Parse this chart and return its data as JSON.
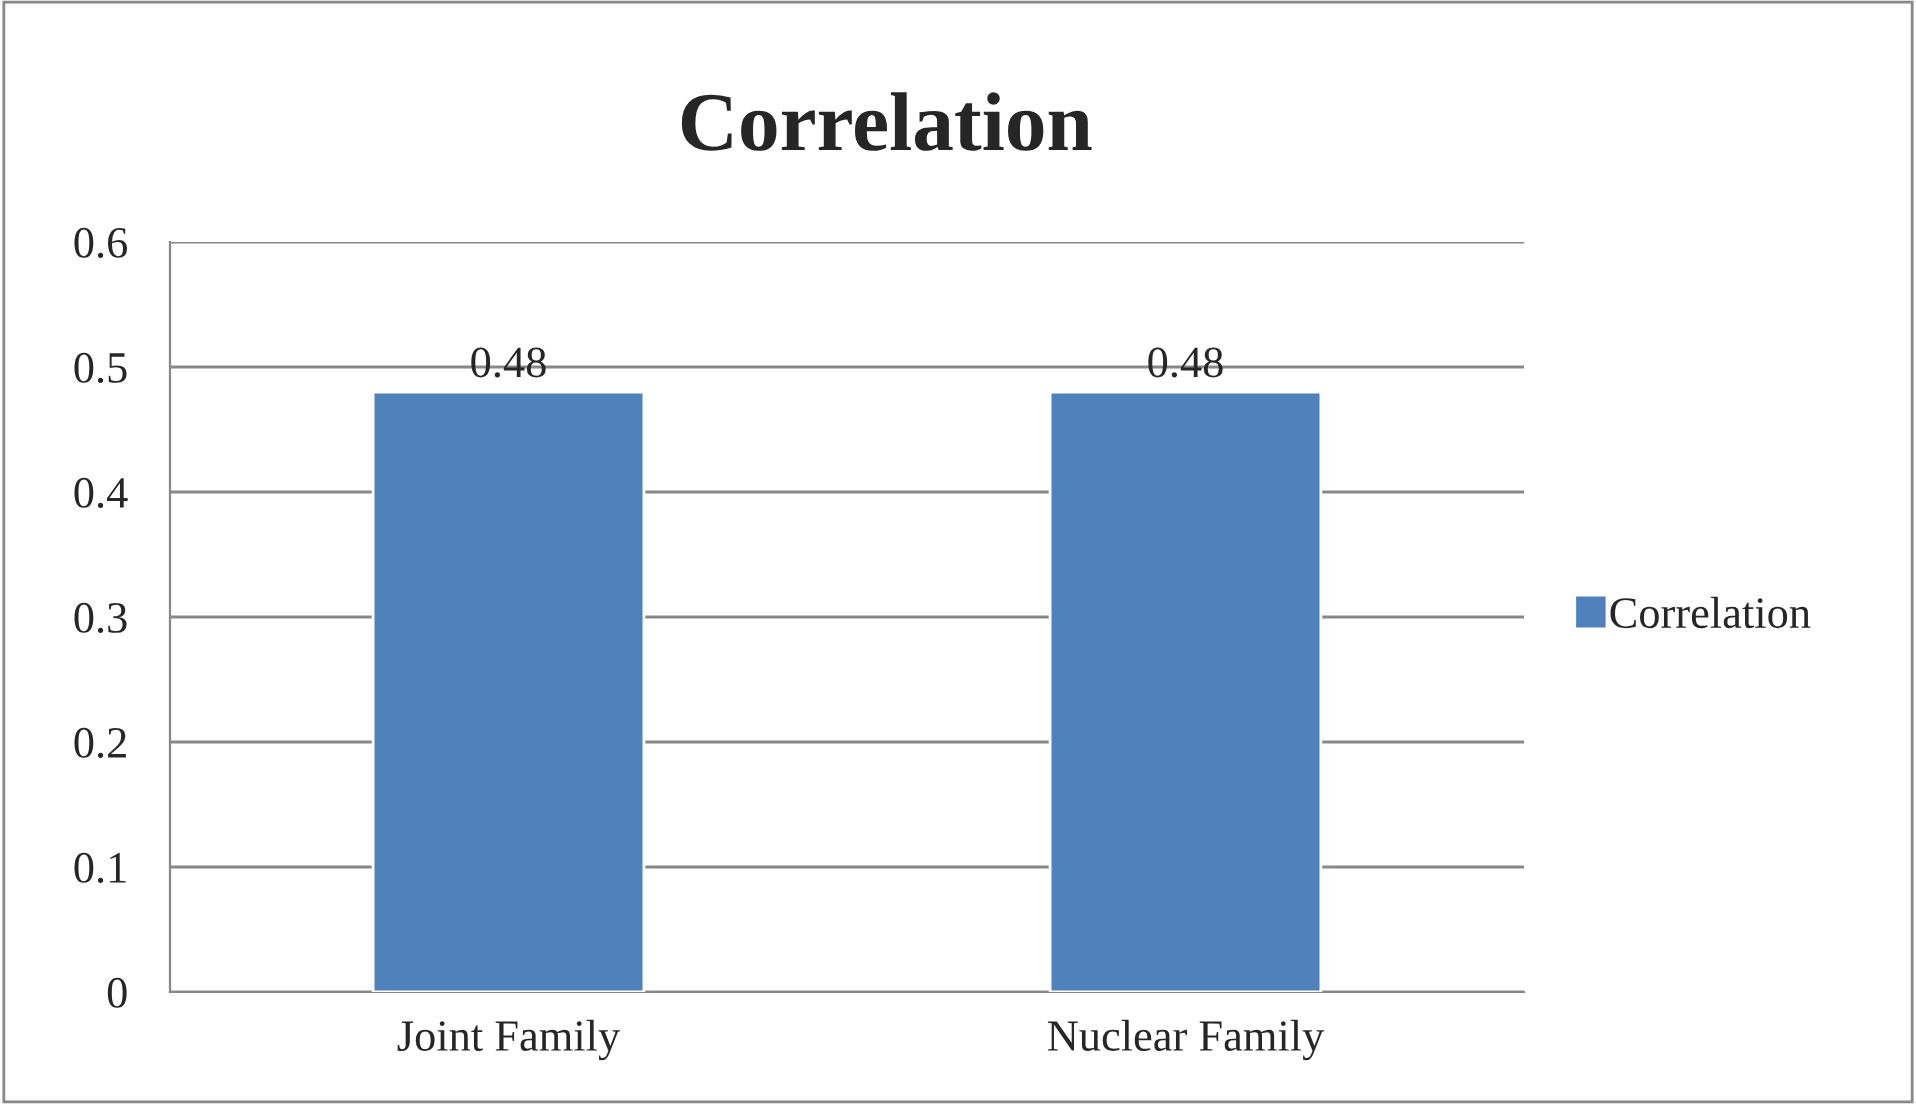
{
  "chart_data": {
    "type": "bar",
    "title": "Correlation",
    "categories": [
      "Joint Family",
      "Nuclear Family"
    ],
    "series": [
      {
        "name": "Correlation",
        "color": "#4f81bd",
        "values": [
          0.48,
          0.48
        ]
      }
    ],
    "ylim": [
      0,
      0.6
    ],
    "yticks": [
      0,
      0.1,
      0.2,
      0.3,
      0.4,
      0.5,
      0.6
    ],
    "grid": "y",
    "legend": "right",
    "data_labels": true
  }
}
